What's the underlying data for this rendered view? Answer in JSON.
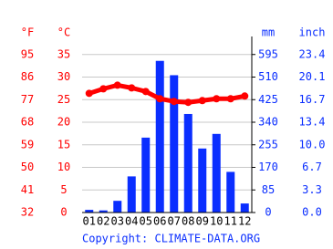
{
  "chart_data": {
    "type": "climate",
    "categories": [
      "01",
      "02",
      "03",
      "04",
      "05",
      "06",
      "07",
      "08",
      "09",
      "10",
      "11",
      "12"
    ],
    "series": [
      {
        "name": "Precipitation",
        "color": "#0a2eff",
        "axis": "y2",
        "values": [
          10,
          8,
          44,
          136,
          282,
          571,
          517,
          371,
          241,
          296,
          153,
          34
        ]
      },
      {
        "name": "Temperature",
        "color": "#ff0000",
        "values": [
          26.4,
          27.4,
          28.2,
          27.6,
          26.8,
          25.2,
          24.6,
          24.4,
          24.8,
          25.2,
          25.2,
          25.8
        ]
      }
    ],
    "ylabel": "°C",
    "ylim": [
      0,
      40
    ],
    "yticks": [
      0,
      5,
      10,
      15,
      20,
      25,
      30,
      35
    ],
    "yflabel": "°F",
    "yflim": [
      32,
      104
    ],
    "yfticks": [
      32,
      41,
      50,
      59,
      68,
      77,
      86,
      95
    ],
    "y2label": "mm",
    "y2lim": [
      0,
      680
    ],
    "y2ticks": [
      0,
      85,
      170,
      255,
      340,
      425,
      510,
      595
    ],
    "y3label": "inch",
    "y3lim": [
      0,
      26.8
    ],
    "y3ticks": [
      {
        "value": 0,
        "label": "0.0"
      },
      3.3,
      6.7,
      {
        "value": 10,
        "label": "10.0"
      },
      13.4,
      16.7,
      20.1,
      23.4
    ],
    "grid": true,
    "footer": "Copyright: CLIMATE-DATA.ORG"
  }
}
